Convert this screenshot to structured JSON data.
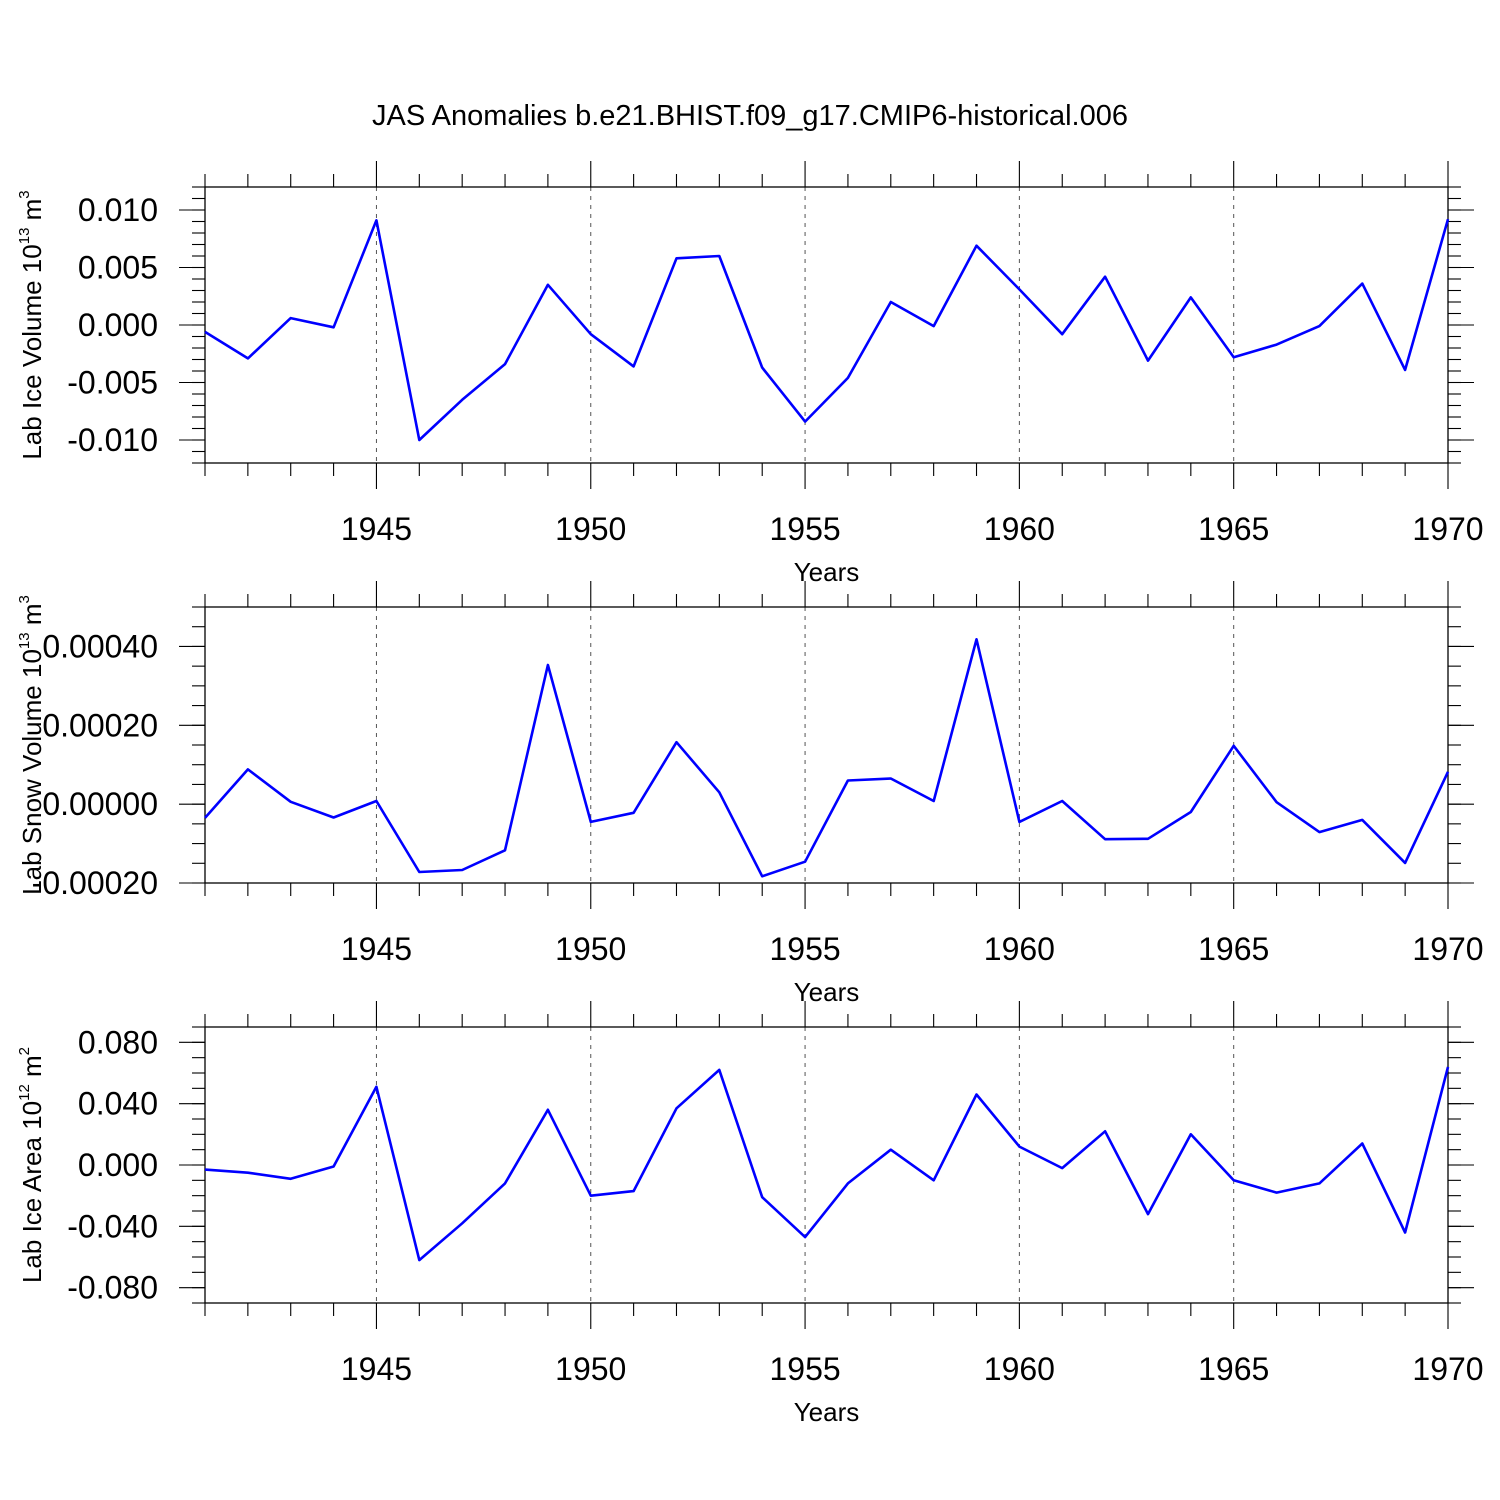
{
  "figure_title": "JAS Anomalies b.e21.BHIST.f09_g17.CMIP6-historical.006",
  "colors": {
    "line": "#0000ff",
    "axis": "#000000",
    "grid": "#555555"
  },
  "chart_data": [
    {
      "type": "line",
      "title": "JAS Anomalies b.e21.BHIST.f09_g17.CMIP6-historical.006",
      "xlabel": "Years",
      "ylabel": {
        "base": "Lab Ice Volume 10",
        "exp": "13",
        "unit": " m",
        "unit_exp": "3"
      },
      "xlim": [
        1941,
        1970
      ],
      "ylim": [
        -0.012,
        0.012
      ],
      "xticks": [
        1945,
        1950,
        1955,
        1960,
        1965,
        1970
      ],
      "yticks": [
        -0.01,
        -0.005,
        0.0,
        0.005,
        0.01
      ],
      "yticklabels": [
        "-0.010",
        "-0.005",
        "0.000",
        "0.005",
        "0.010"
      ],
      "yminor_step": 0.001,
      "x": [
        1941,
        1942,
        1943,
        1944,
        1945,
        1946,
        1947,
        1948,
        1949,
        1950,
        1951,
        1952,
        1953,
        1954,
        1955,
        1956,
        1957,
        1958,
        1959,
        1960,
        1961,
        1962,
        1963,
        1964,
        1965,
        1966,
        1967,
        1968,
        1969,
        1970
      ],
      "values": [
        -0.0006,
        -0.0029,
        0.0006,
        -0.0002,
        0.0091,
        -0.01,
        -0.0065,
        -0.0034,
        0.0035,
        -0.0008,
        -0.0036,
        0.0058,
        0.006,
        -0.0037,
        -0.0084,
        -0.0046,
        0.002,
        -0.0001,
        0.0069,
        0.0031,
        -0.0008,
        0.0042,
        -0.0031,
        0.0024,
        -0.0028,
        -0.0017,
        -0.0001,
        0.0036,
        -0.0039,
        0.0092
      ]
    },
    {
      "type": "line",
      "xlabel": "Years",
      "ylabel": {
        "base": "Lab Snow Volume 10",
        "exp": "13",
        "unit": " m",
        "unit_exp": "3"
      },
      "xlim": [
        1941,
        1970
      ],
      "ylim": [
        -0.0002,
        0.0005
      ],
      "xticks": [
        1945,
        1950,
        1955,
        1960,
        1965,
        1970
      ],
      "yticks": [
        -0.0002,
        0.0,
        0.0002,
        0.0004
      ],
      "yticklabels": [
        "-0.00020",
        "0.00000",
        "0.00020",
        "0.00040"
      ],
      "yminor_step": 5e-05,
      "x": [
        1941,
        1942,
        1943,
        1944,
        1945,
        1946,
        1947,
        1948,
        1949,
        1950,
        1951,
        1952,
        1953,
        1954,
        1955,
        1956,
        1957,
        1958,
        1959,
        1960,
        1961,
        1962,
        1963,
        1964,
        1965,
        1966,
        1967,
        1968,
        1969,
        1970
      ],
      "values": [
        -3.5e-05,
        8.8e-05,
        6e-06,
        -3.4e-05,
        8e-06,
        -0.000172,
        -0.000167,
        -0.000117,
        0.000353,
        -4.5e-05,
        -2.2e-05,
        0.000157,
        3e-05,
        -0.000183,
        -0.000146,
        6e-05,
        6.5e-05,
        8e-06,
        0.000418,
        -4.5e-05,
        8e-06,
        -8.9e-05,
        -8.8e-05,
        -2e-05,
        0.000148,
        5e-06,
        -7.1e-05,
        -4e-05,
        -0.000149,
        8.2e-05
      ]
    },
    {
      "type": "line",
      "xlabel": "Years",
      "ylabel": {
        "base": "Lab Ice Area 10",
        "exp": "12",
        "unit": " m",
        "unit_exp": "2"
      },
      "xlim": [
        1941,
        1970
      ],
      "ylim": [
        -0.09,
        0.09
      ],
      "xticks": [
        1945,
        1950,
        1955,
        1960,
        1965,
        1970
      ],
      "yticks": [
        -0.08,
        -0.04,
        0.0,
        0.04,
        0.08
      ],
      "yticklabels": [
        "-0.080",
        "-0.040",
        "0.000",
        "0.040",
        "0.080"
      ],
      "yminor_step": 0.01,
      "x": [
        1941,
        1942,
        1943,
        1944,
        1945,
        1946,
        1947,
        1948,
        1949,
        1950,
        1951,
        1952,
        1953,
        1954,
        1955,
        1956,
        1957,
        1958,
        1959,
        1960,
        1961,
        1962,
        1963,
        1964,
        1965,
        1966,
        1967,
        1968,
        1969,
        1970
      ],
      "values": [
        -0.003,
        -0.005,
        -0.009,
        -0.001,
        0.051,
        -0.062,
        -0.038,
        -0.012,
        0.036,
        -0.02,
        -0.017,
        0.037,
        0.062,
        -0.021,
        -0.047,
        -0.012,
        0.01,
        -0.01,
        0.046,
        0.012,
        -0.002,
        0.022,
        -0.032,
        0.02,
        -0.01,
        -0.018,
        -0.012,
        0.014,
        -0.044,
        0.064
      ]
    }
  ]
}
